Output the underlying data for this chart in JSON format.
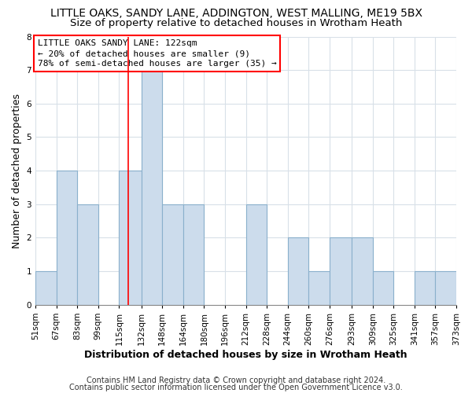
{
  "title": "LITTLE OAKS, SANDY LANE, ADDINGTON, WEST MALLING, ME19 5BX",
  "subtitle": "Size of property relative to detached houses in Wrotham Heath",
  "xlabel": "Distribution of detached houses by size in Wrotham Heath",
  "ylabel": "Number of detached properties",
  "bin_edges": [
    51,
    67,
    83,
    99,
    115,
    132,
    148,
    164,
    180,
    196,
    212,
    228,
    244,
    260,
    276,
    293,
    309,
    325,
    341,
    357,
    373
  ],
  "bar_heights": [
    1,
    4,
    3,
    0,
    4,
    7,
    3,
    3,
    0,
    0,
    3,
    0,
    2,
    1,
    2,
    2,
    1,
    0,
    1,
    1
  ],
  "bar_color": "#ccdcec",
  "bar_edge_color": "#8ab0cc",
  "bar_edge_width": 0.8,
  "red_line_x": 122,
  "ylim": [
    0,
    8
  ],
  "yticks": [
    0,
    1,
    2,
    3,
    4,
    5,
    6,
    7,
    8
  ],
  "annotation_lines": [
    "LITTLE OAKS SANDY LANE: 122sqm",
    "← 20% of detached houses are smaller (9)",
    "78% of semi-detached houses are larger (35) →"
  ],
  "footer_line1": "Contains HM Land Registry data © Crown copyright and database right 2024.",
  "footer_line2": "Contains public sector information licensed under the Open Government Licence v3.0.",
  "background_color": "#ffffff",
  "grid_color": "#d8e0e8",
  "title_fontsize": 10,
  "subtitle_fontsize": 9.5,
  "axis_label_fontsize": 9,
  "tick_label_fontsize": 7.5,
  "annotation_fontsize": 8,
  "footer_fontsize": 7
}
